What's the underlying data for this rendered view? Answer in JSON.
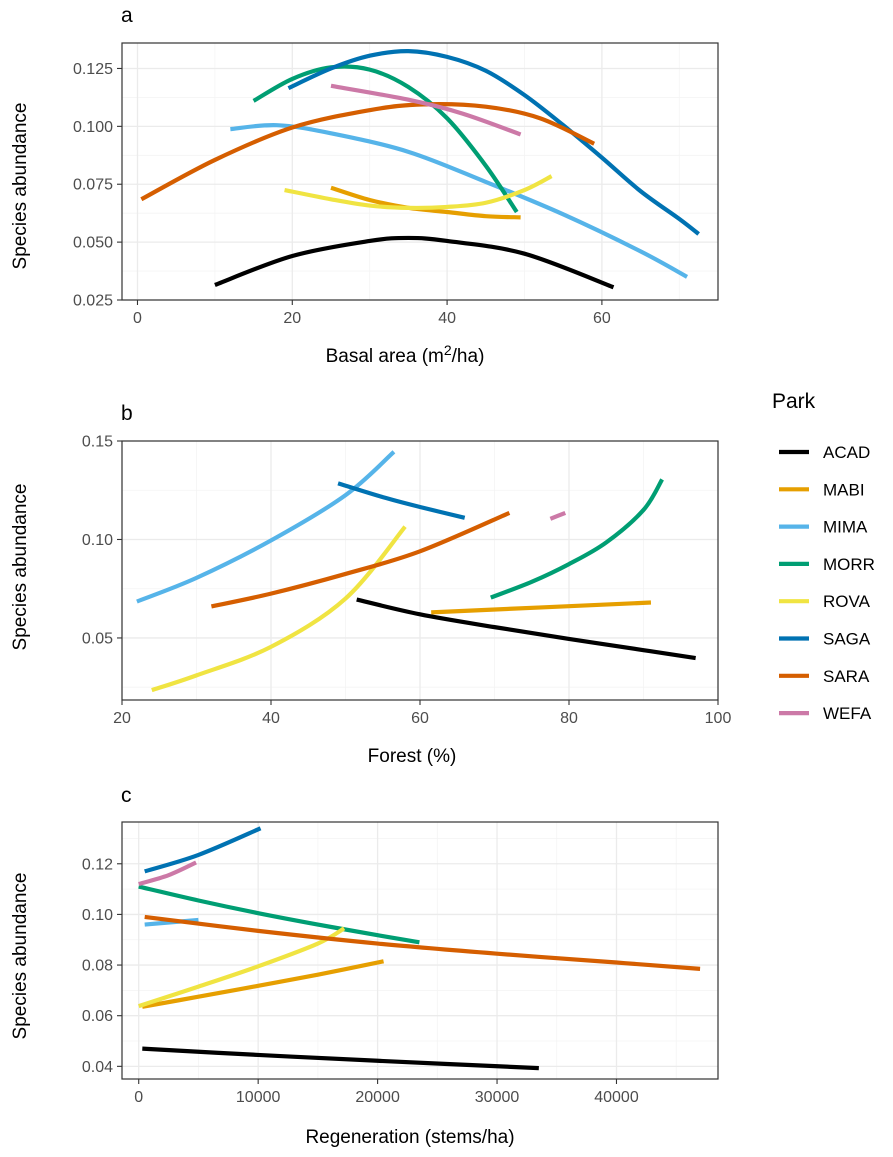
{
  "legend": {
    "title": "Park",
    "entries": [
      {
        "name": "ACAD",
        "color": "#000000"
      },
      {
        "name": "MABI",
        "color": "#E69F00"
      },
      {
        "name": "MIMA",
        "color": "#56B4E9"
      },
      {
        "name": "MORR",
        "color": "#009E73"
      },
      {
        "name": "ROVA",
        "color": "#F0E442"
      },
      {
        "name": "SAGA",
        "color": "#0072B2"
      },
      {
        "name": "SARA",
        "color": "#D55E00"
      },
      {
        "name": "WEFA",
        "color": "#CC79A7"
      }
    ]
  },
  "chart_data": [
    {
      "type": "line",
      "panel": "a",
      "xlabel_main": "Basal area ",
      "xlabel_unit_base": "m",
      "xlabel_unit_sup": "2",
      "xlabel_unit_rest": "/ha)",
      "xlabel_open": "(",
      "ylabel": "Species abundance",
      "xlim": [
        -2,
        75
      ],
      "ylim": [
        0.025,
        0.136
      ],
      "xticks": [
        0,
        20,
        40,
        60
      ],
      "xtick_labels": [
        "0",
        "20",
        "40",
        "60"
      ],
      "yticks": [
        0.025,
        0.05,
        0.075,
        0.1,
        0.125
      ],
      "ytick_labels": [
        "0.025",
        "0.050",
        "0.075",
        "0.100",
        "0.125"
      ],
      "series": [
        {
          "name": "ACAD",
          "points": [
            [
              10,
              0.0315
            ],
            [
              20,
              0.044
            ],
            [
              30,
              0.0505
            ],
            [
              35,
              0.0518
            ],
            [
              40,
              0.0505
            ],
            [
              50,
              0.045
            ],
            [
              61.5,
              0.0305
            ]
          ]
        },
        {
          "name": "MABI",
          "points": [
            [
              25,
              0.0735
            ],
            [
              30,
              0.0682
            ],
            [
              35,
              0.0648
            ],
            [
              40,
              0.063
            ],
            [
              45,
              0.0612
            ],
            [
              49.5,
              0.0607
            ]
          ]
        },
        {
          "name": "MIMA",
          "points": [
            [
              12,
              0.0988
            ],
            [
              18,
              0.1005
            ],
            [
              25,
              0.097
            ],
            [
              35,
              0.089
            ],
            [
              45,
              0.076
            ],
            [
              55,
              0.062
            ],
            [
              65,
              0.046
            ],
            [
              71,
              0.035
            ]
          ]
        },
        {
          "name": "MORR",
          "points": [
            [
              15,
              0.111
            ],
            [
              20,
              0.1205
            ],
            [
              25,
              0.1255
            ],
            [
              30,
              0.1245
            ],
            [
              35,
              0.117
            ],
            [
              40,
              0.1035
            ],
            [
              45,
              0.083
            ],
            [
              49,
              0.063
            ]
          ]
        },
        {
          "name": "ROVA",
          "points": [
            [
              19,
              0.0725
            ],
            [
              25,
              0.0685
            ],
            [
              30,
              0.0658
            ],
            [
              35,
              0.0648
            ],
            [
              40,
              0.0652
            ],
            [
              45,
              0.067
            ],
            [
              50,
              0.0725
            ],
            [
              53.5,
              0.0785
            ]
          ]
        },
        {
          "name": "SAGA",
          "points": [
            [
              19.5,
              0.1165
            ],
            [
              25,
              0.125
            ],
            [
              30,
              0.1305
            ],
            [
              35,
              0.1325
            ],
            [
              40,
              0.13
            ],
            [
              45,
              0.124
            ],
            [
              50,
              0.1135
            ],
            [
              55,
              0.1005
            ],
            [
              60,
              0.0865
            ],
            [
              65,
              0.072
            ],
            [
              70,
              0.06
            ],
            [
              72.5,
              0.0535
            ]
          ]
        },
        {
          "name": "SARA",
          "points": [
            [
              0.5,
              0.0685
            ],
            [
              10,
              0.0855
            ],
            [
              20,
              0.0995
            ],
            [
              30,
              0.107
            ],
            [
              37,
              0.1095
            ],
            [
              45,
              0.1085
            ],
            [
              52,
              0.1035
            ],
            [
              59,
              0.0925
            ]
          ]
        },
        {
          "name": "WEFA",
          "points": [
            [
              25,
              0.1175
            ],
            [
              35,
              0.1115
            ],
            [
              42,
              0.1055
            ],
            [
              49.5,
              0.0965
            ]
          ]
        }
      ]
    },
    {
      "type": "line",
      "panel": "b",
      "xlabel": "Forest (%)",
      "ylabel": "Species abundance",
      "xlim": [
        20,
        100
      ],
      "ylim": [
        0.0185,
        0.15
      ],
      "xticks": [
        20,
        40,
        60,
        80,
        100
      ],
      "xtick_labels": [
        "20",
        "40",
        "60",
        "80",
        "100"
      ],
      "yticks": [
        0.05,
        0.1,
        0.15
      ],
      "ytick_labels": [
        "0.05",
        "0.10",
        "0.15"
      ],
      "series": [
        {
          "name": "ACAD",
          "points": [
            [
              51.5,
              0.0695
            ],
            [
              60,
              0.062
            ],
            [
              70,
              0.0555
            ],
            [
              80,
              0.0495
            ],
            [
              90,
              0.0438
            ],
            [
              97,
              0.0398
            ]
          ]
        },
        {
          "name": "MABI",
          "points": [
            [
              61.5,
              0.063
            ],
            [
              91,
              0.068
            ]
          ]
        },
        {
          "name": "MIMA",
          "points": [
            [
              22,
              0.0685
            ],
            [
              30,
              0.0805
            ],
            [
              40,
              0.0995
            ],
            [
              50,
              0.1225
            ],
            [
              56.5,
              0.1445
            ]
          ]
        },
        {
          "name": "MORR",
          "points": [
            [
              69.5,
              0.0705
            ],
            [
              75,
              0.0785
            ],
            [
              80,
              0.0875
            ],
            [
              85,
              0.0985
            ],
            [
              90,
              0.115
            ],
            [
              92.5,
              0.1305
            ]
          ]
        },
        {
          "name": "ROVA",
          "points": [
            [
              24,
              0.0235
            ],
            [
              30,
              0.031
            ],
            [
              40,
              0.0455
            ],
            [
              50,
              0.07
            ],
            [
              58,
              0.1065
            ]
          ]
        },
        {
          "name": "SAGA",
          "points": [
            [
              49,
              0.1285
            ],
            [
              55,
              0.1215
            ],
            [
              60,
              0.1165
            ],
            [
              66,
              0.111
            ]
          ]
        },
        {
          "name": "SARA",
          "points": [
            [
              32,
              0.066
            ],
            [
              40,
              0.0725
            ],
            [
              50,
              0.0825
            ],
            [
              60,
              0.094
            ],
            [
              72,
              0.1135
            ]
          ]
        },
        {
          "name": "WEFA",
          "points": [
            [
              77.5,
              0.1105
            ],
            [
              79.5,
              0.1135
            ]
          ]
        }
      ]
    },
    {
      "type": "line",
      "panel": "c",
      "xlabel": "Regeneration (stems/ha)",
      "ylabel": "Species abundance",
      "xlim": [
        -1400,
        48500
      ],
      "ylim": [
        0.035,
        0.1365
      ],
      "xticks": [
        0,
        10000,
        20000,
        30000,
        40000
      ],
      "xtick_labels": [
        "0",
        "10000",
        "20000",
        "30000",
        "40000"
      ],
      "yticks": [
        0.04,
        0.06,
        0.08,
        0.1,
        0.12
      ],
      "ytick_labels": [
        "0.04",
        "0.06",
        "0.08",
        "0.10",
        "0.12"
      ],
      "series": [
        {
          "name": "ACAD",
          "points": [
            [
              300,
              0.047
            ],
            [
              10000,
              0.0445
            ],
            [
              20000,
              0.0422
            ],
            [
              33500,
              0.0393
            ]
          ]
        },
        {
          "name": "MABI",
          "points": [
            [
              300,
              0.0635
            ],
            [
              5000,
              0.0675
            ],
            [
              10000,
              0.0718
            ],
            [
              15000,
              0.0762
            ],
            [
              20500,
              0.0815
            ]
          ]
        },
        {
          "name": "MIMA",
          "points": [
            [
              500,
              0.096
            ],
            [
              5000,
              0.0978
            ]
          ]
        },
        {
          "name": "MORR",
          "points": [
            [
              0,
              0.111
            ],
            [
              5000,
              0.1055
            ],
            [
              10000,
              0.1005
            ],
            [
              15000,
              0.096
            ],
            [
              20000,
              0.0918
            ],
            [
              23500,
              0.089
            ]
          ]
        },
        {
          "name": "ROVA",
          "points": [
            [
              0,
              0.0638
            ],
            [
              5000,
              0.0715
            ],
            [
              10000,
              0.0795
            ],
            [
              15000,
              0.0885
            ],
            [
              17200,
              0.0945
            ]
          ]
        },
        {
          "name": "SAGA",
          "points": [
            [
              500,
              0.117
            ],
            [
              5000,
              0.1235
            ],
            [
              10200,
              0.134
            ]
          ]
        },
        {
          "name": "SARA",
          "points": [
            [
              500,
              0.099
            ],
            [
              10000,
              0.0935
            ],
            [
              20000,
              0.0885
            ],
            [
              30000,
              0.0845
            ],
            [
              40000,
              0.081
            ],
            [
              47000,
              0.0785
            ]
          ]
        },
        {
          "name": "WEFA",
          "points": [
            [
              0,
              0.112
            ],
            [
              2500,
              0.1155
            ],
            [
              4800,
              0.1205
            ]
          ]
        }
      ]
    }
  ]
}
